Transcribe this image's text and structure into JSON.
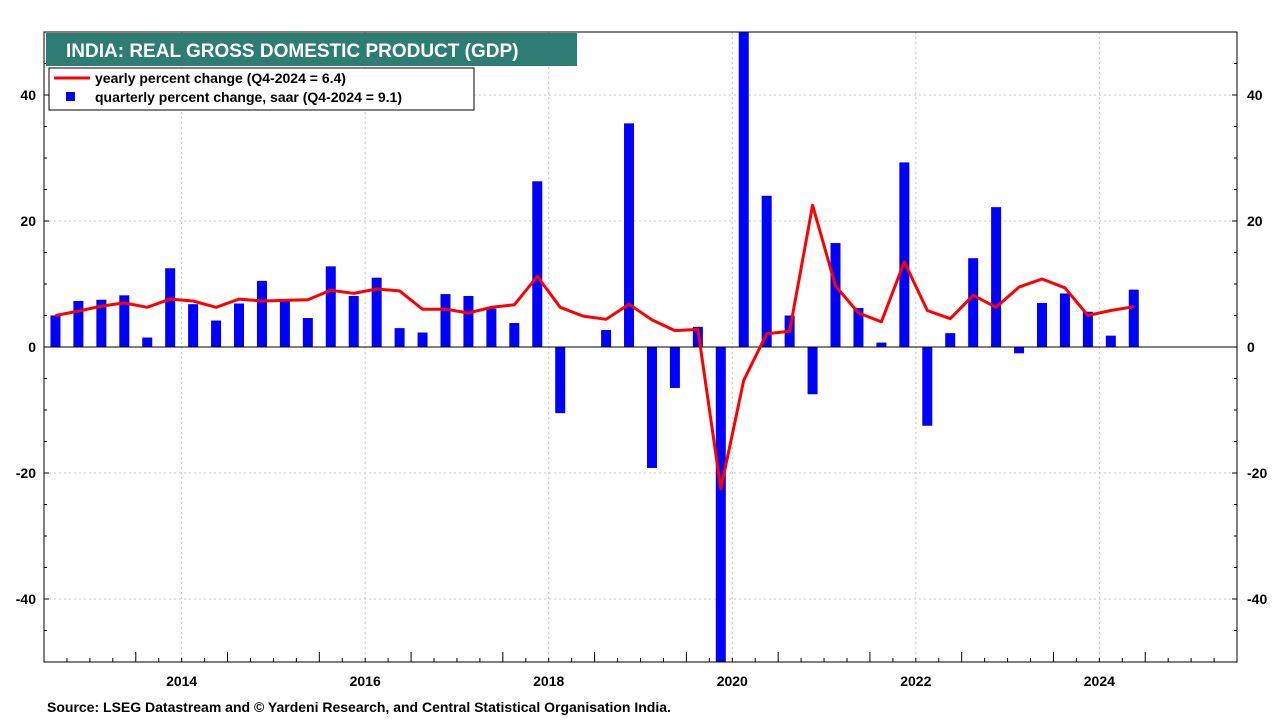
{
  "chart_data": {
    "type": "bar+line",
    "title": "INDIA: REAL GROSS DOMESTIC PRODUCT (GDP)",
    "source": "Source: LSEG Datastream and © Yardeni Research, and  Central Statistical Organisation India.",
    "ylim": [
      -50,
      50
    ],
    "xlim": [
      "2013-01",
      "2025-12"
    ],
    "y_ticks": [
      40,
      20,
      0,
      -20,
      -40
    ],
    "x_tick_labels": [
      "2014",
      "2016",
      "2018",
      "2020",
      "2022",
      "2024"
    ],
    "grid": true,
    "legend_position": "top-left",
    "colors": {
      "title_bg": "#2E7D74",
      "bars": "#0000FF",
      "line": "#FF0000",
      "grid": "#C8C8C8",
      "zero_line": "#000000"
    },
    "x": [
      "Q1-2013",
      "Q2-2013",
      "Q3-2013",
      "Q4-2013",
      "Q1-2014",
      "Q2-2014",
      "Q3-2014",
      "Q4-2014",
      "Q1-2015",
      "Q2-2015",
      "Q3-2015",
      "Q4-2015",
      "Q1-2016",
      "Q2-2016",
      "Q3-2016",
      "Q4-2016",
      "Q1-2017",
      "Q2-2017",
      "Q3-2017",
      "Q4-2017",
      "Q1-2018",
      "Q2-2018",
      "Q3-2018",
      "Q4-2018",
      "Q1-2019",
      "Q2-2019",
      "Q3-2019",
      "Q4-2019",
      "Q1-2020",
      "Q2-2020",
      "Q3-2020",
      "Q4-2020",
      "Q1-2021",
      "Q2-2021",
      "Q3-2021",
      "Q4-2021",
      "Q1-2022",
      "Q2-2022",
      "Q3-2022",
      "Q4-2022",
      "Q1-2023",
      "Q2-2023",
      "Q3-2023",
      "Q4-2023",
      "Q1-2024",
      "Q2-2024",
      "Q3-2024",
      "Q4-2024"
    ],
    "series": [
      {
        "name": "quarterly percent change, saar (Q4-2024 = 9.1)",
        "kind": "bar",
        "values": [
          5.0,
          7.3,
          7.5,
          8.2,
          1.5,
          12.5,
          6.8,
          4.2,
          6.9,
          10.5,
          7.5,
          4.6,
          12.8,
          8.1,
          11.0,
          3.0,
          2.3,
          8.4,
          8.1,
          6.1,
          3.8,
          26.3,
          -10.5,
          0.0,
          2.7,
          35.5,
          -19.2,
          -6.5,
          3.2,
          -52.0,
          53.0,
          24.0,
          5.0,
          -7.5,
          16.5,
          6.2,
          0.7,
          29.3,
          -12.5,
          2.2,
          14.1,
          22.2,
          -1.0,
          7.0,
          8.5,
          5.6,
          1.8,
          9.1
        ]
      },
      {
        "name": "yearly percent change (Q4-2024 = 6.4)",
        "kind": "line",
        "values": [
          5.0,
          5.7,
          6.5,
          7.0,
          6.3,
          7.6,
          7.3,
          6.3,
          7.6,
          7.3,
          7.4,
          7.5,
          9.0,
          8.5,
          9.2,
          8.9,
          6.0,
          6.0,
          5.4,
          6.3,
          6.7,
          11.2,
          6.3,
          4.9,
          4.4,
          6.8,
          4.3,
          2.6,
          2.8,
          -22.5,
          -5.3,
          2.1,
          2.5,
          22.5,
          9.7,
          5.4,
          4.0,
          13.5,
          5.8,
          4.5,
          8.2,
          6.3,
          9.5,
          10.8,
          9.4,
          5.0,
          5.8,
          6.4
        ]
      }
    ]
  }
}
